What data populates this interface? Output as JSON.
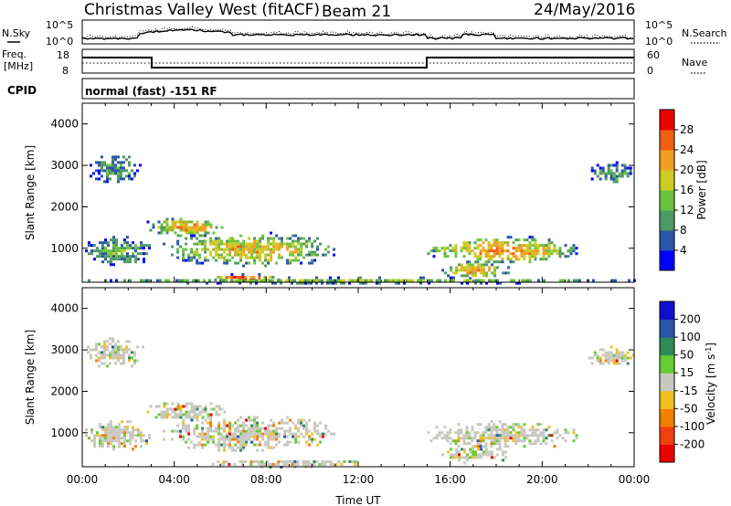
{
  "header": {
    "station": "Christmas Valley West (fitACF)",
    "beam": "Beam 21",
    "date": "24/May/2016",
    "cpid_label": "CPID",
    "cpid_value": "normal (fast) -151 RF"
  },
  "noise_panel": {
    "left_label": "N.Sky",
    "right_label": "N.Search",
    "left_ticks": [
      "10^5",
      "10^0"
    ],
    "right_ticks": [
      "10^5",
      "10^0"
    ]
  },
  "freq_panel": {
    "left_label_1": "Freq.",
    "left_label_2": "[MHz]",
    "right_label": "Nave",
    "left_ticks": [
      "18",
      "8"
    ],
    "right_ticks": [
      "60",
      "0"
    ]
  },
  "chart_data": [
    {
      "type": "heatmap",
      "quantity": "Power",
      "ylabel": "Slant Range [km]",
      "colorbar_label": "Power [dB]",
      "x_range_hours": [
        0,
        24
      ],
      "ylim_km": [
        180,
        4500
      ],
      "yticks": [
        1000,
        2000,
        3000,
        4000
      ],
      "colorbar_ticks": [
        4,
        8,
        12,
        16,
        20,
        24,
        28
      ],
      "colorbar_colors": [
        "#0000ff",
        "#2a56aa",
        "#4c9a64",
        "#6cc33c",
        "#cccc22",
        "#f0a020",
        "#f06010",
        "#ee0000"
      ],
      "echo_regions": [
        {
          "t0": 0.2,
          "t1": 2.6,
          "r0": 2600,
          "r1": 3300,
          "level": 0.3
        },
        {
          "t0": 2.8,
          "t1": 6.2,
          "r0": 1300,
          "r1": 1800,
          "level": 0.7
        },
        {
          "t0": 3.5,
          "t1": 11.0,
          "r0": 600,
          "r1": 1400,
          "level": 0.65
        },
        {
          "t0": 5.5,
          "t1": 8.5,
          "r0": 200,
          "r1": 400,
          "level": 0.95
        },
        {
          "t0": 0.0,
          "t1": 3.0,
          "r0": 600,
          "r1": 1300,
          "level": 0.35
        },
        {
          "t0": 15.0,
          "t1": 21.5,
          "r0": 650,
          "r1": 1300,
          "level": 0.75
        },
        {
          "t0": 15.5,
          "t1": 18.5,
          "r0": 300,
          "r1": 700,
          "level": 0.7
        },
        {
          "t0": 22.0,
          "t1": 24.0,
          "r0": 2600,
          "r1": 3100,
          "level": 0.3
        },
        {
          "t0": 0.0,
          "t1": 24.0,
          "r0": 180,
          "r1": 320,
          "level": 0.45
        }
      ]
    },
    {
      "type": "heatmap",
      "quantity": "Velocity",
      "ylabel": "Slant Range [km]",
      "xlabel": "Time UT",
      "colorbar_label": "Velocity [m s^-1]",
      "x_range_hours": [
        0,
        24
      ],
      "ylim_km": [
        180,
        4500
      ],
      "yticks": [
        1000,
        2000,
        3000,
        4000
      ],
      "xticks": [
        "00:00",
        "04:00",
        "08:00",
        "12:00",
        "16:00",
        "20:00",
        "00:00"
      ],
      "colorbar_ticks": [
        200,
        100,
        50,
        15,
        -15,
        -50,
        -100,
        -200
      ],
      "colorbar_colors": [
        "#1010cc",
        "#2a56aa",
        "#2e8b57",
        "#66cc33",
        "#c8c8c0",
        "#f0c020",
        "#f08000",
        "#f04010",
        "#ee0000"
      ],
      "echo_regions": [
        {
          "t0": 0.2,
          "t1": 2.6,
          "r0": 2600,
          "r1": 3300,
          "level": 0.45
        },
        {
          "t0": 2.8,
          "t1": 6.2,
          "r0": 1300,
          "r1": 1800,
          "level": 0.45
        },
        {
          "t0": 3.5,
          "t1": 11.0,
          "r0": 600,
          "r1": 1400,
          "level": 0.5
        },
        {
          "t0": 5.5,
          "t1": 12.5,
          "r0": 200,
          "r1": 400,
          "level": 0.4
        },
        {
          "t0": 0.0,
          "t1": 3.0,
          "r0": 600,
          "r1": 1300,
          "level": 0.45
        },
        {
          "t0": 15.0,
          "t1": 21.5,
          "r0": 650,
          "r1": 1300,
          "level": 0.45
        },
        {
          "t0": 15.5,
          "t1": 18.5,
          "r0": 300,
          "r1": 700,
          "level": 0.45
        },
        {
          "t0": 22.0,
          "t1": 24.0,
          "r0": 2600,
          "r1": 3100,
          "level": 0.45
        }
      ]
    }
  ],
  "legend": {
    "colorbar_top_label_parts": [
      "Power ",
      "[dB]"
    ],
    "colorbar_bottom_label_parts": [
      "Velocity [m s",
      "-1",
      "]"
    ]
  }
}
